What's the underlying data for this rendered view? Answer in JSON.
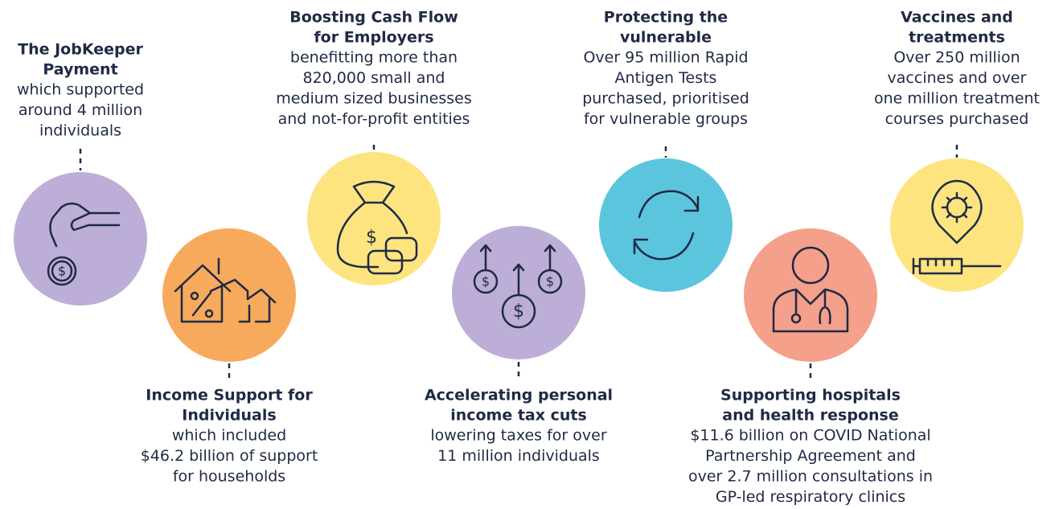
{
  "items": [
    {
      "title": [
        "The JobKeeper",
        "Payment"
      ],
      "text": [
        "which supported",
        "around 4 million",
        "individuals"
      ]
    },
    {
      "title": [
        "Income Support for",
        "Individuals"
      ],
      "text": [
        "which included",
        "$46.2 billion of support",
        "for households"
      ]
    },
    {
      "title": [
        "Boosting Cash Flow",
        "for Employers"
      ],
      "text": [
        "benefitting more than",
        "820,000 small and",
        "medium sized businesses",
        "and not-for-profit entities"
      ]
    },
    {
      "title": [
        "Accelerating personal",
        "income tax cuts"
      ],
      "text": [
        "lowering taxes for over",
        "11 million individuals"
      ]
    },
    {
      "title": [
        "Protecting the",
        "vulnerable"
      ],
      "text": [
        "Over 95 million Rapid",
        "Antigen Tests",
        "purchased, prioritised",
        "for vulnerable groups"
      ]
    },
    {
      "title": [
        "Supporting hospitals",
        "and health response"
      ],
      "text": [
        "$11.6 billion on COVID National",
        "Partnership Agreement and",
        "over 2.7 million consultations in",
        "GP-led respiratory clinics"
      ]
    },
    {
      "title": [
        "Vaccines and",
        "treatments"
      ],
      "text": [
        "Over 250 million",
        "vaccines and over",
        "one million treatment",
        "courses purchased"
      ]
    }
  ]
}
